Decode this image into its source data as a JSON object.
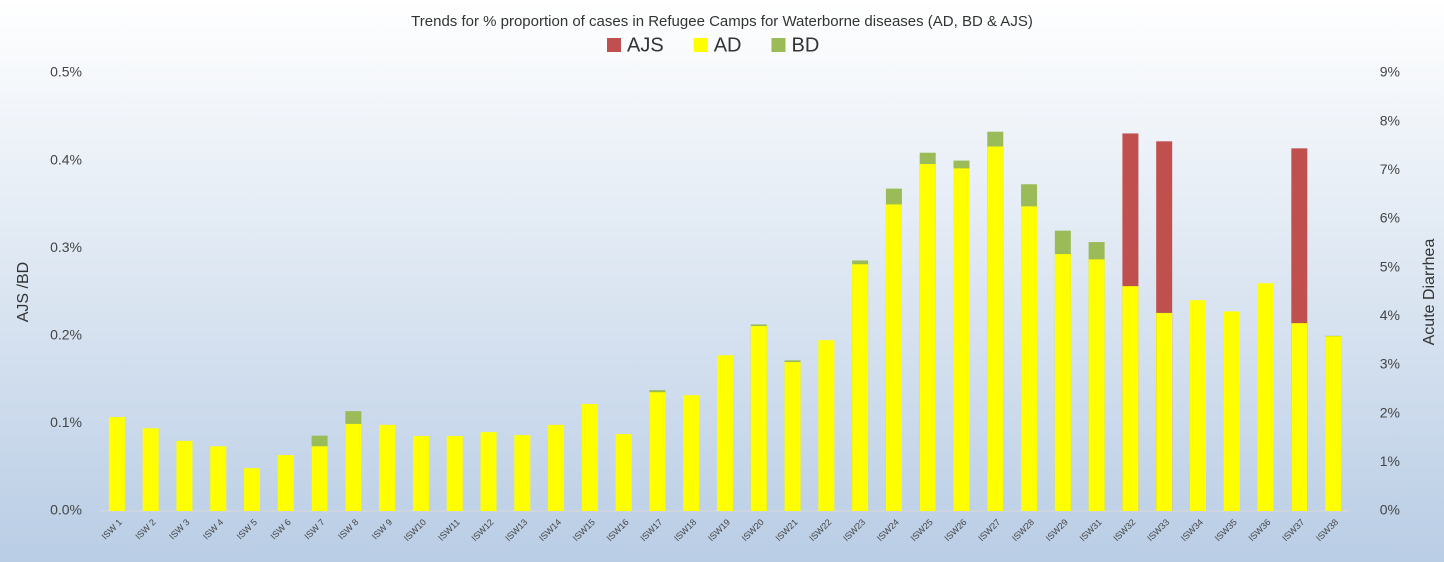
{
  "chart_data": {
    "type": "bar",
    "title": "Trends for % proportion of cases in Refugee Camps for Waterborne diseases (AD, BD & AJS)",
    "ylabel": "AJS /BD",
    "y2label": "Acute Diarrhea",
    "categories": [
      "ISW 1",
      "ISW 2",
      "ISW 3",
      "ISW 4",
      "ISW 5",
      "ISW 6",
      "ISW 7",
      "ISW 8",
      "ISW 9",
      "ISW10",
      "ISW11",
      "ISW12",
      "ISW13",
      "ISW14",
      "ISW15",
      "ISW16",
      "ISW17",
      "ISW18",
      "ISW19",
      "ISW20",
      "ISW21",
      "ISW22",
      "ISW23",
      "ISW24",
      "ISW25",
      "ISW26",
      "ISW27",
      "ISW28",
      "ISW29",
      "ISW31",
      "ISW32",
      "ISW33",
      "ISW34",
      "ISW35",
      "ISW36",
      "ISW37",
      "ISW38"
    ],
    "series": [
      {
        "name": "AJS",
        "color": "#c0504d",
        "values": [
          null,
          null,
          null,
          null,
          null,
          null,
          null,
          null,
          null,
          null,
          null,
          null,
          null,
          null,
          null,
          null,
          null,
          null,
          null,
          null,
          null,
          null,
          null,
          null,
          null,
          null,
          null,
          null,
          null,
          null,
          0.431,
          0.422,
          null,
          null,
          null,
          0.414,
          null
        ]
      },
      {
        "name": "AD",
        "color": "#ffff00",
        "axis": "y2",
        "values": [
          1.93,
          1.7,
          1.44,
          1.33,
          0.88,
          1.15,
          1.33,
          1.79,
          1.77,
          1.54,
          1.54,
          1.62,
          1.56,
          1.77,
          2.2,
          1.58,
          2.44,
          2.38,
          3.2,
          3.8,
          3.06,
          3.51,
          5.07,
          6.3,
          7.13,
          7.04,
          7.49,
          6.26,
          5.28,
          5.17,
          4.62,
          4.07,
          4.33,
          4.1,
          4.68,
          3.86,
          3.59
        ]
      },
      {
        "name": "BD",
        "color": "#9bbb59",
        "values": [
          null,
          null,
          null,
          null,
          null,
          null,
          0.086,
          0.114,
          null,
          null,
          null,
          null,
          null,
          null,
          null,
          null,
          0.138,
          null,
          null,
          0.213,
          0.172,
          null,
          0.286,
          0.368,
          0.409,
          0.4,
          0.433,
          0.373,
          0.32,
          0.307,
          null,
          null,
          null,
          null,
          null,
          null,
          0.2
        ]
      }
    ],
    "ylim": [
      0,
      0.5
    ],
    "yticks": [
      {
        "value": 0,
        "label": "0.0%"
      },
      {
        "value": 0.1,
        "label": "0.1%"
      },
      {
        "value": 0.2,
        "label": "0.2%"
      },
      {
        "value": 0.3,
        "label": "0.3%"
      },
      {
        "value": 0.4,
        "label": "0.4%"
      },
      {
        "value": 0.5,
        "label": "0.5%"
      }
    ],
    "y2lim": [
      0,
      9
    ],
    "y2ticks": [
      {
        "value": 0,
        "label": "0%"
      },
      {
        "value": 1,
        "label": "1%"
      },
      {
        "value": 2,
        "label": "2%"
      },
      {
        "value": 3,
        "label": "3%"
      },
      {
        "value": 4,
        "label": "4%"
      },
      {
        "value": 5,
        "label": "5%"
      },
      {
        "value": 6,
        "label": "6%"
      },
      {
        "value": 7,
        "label": "7%"
      },
      {
        "value": 8,
        "label": "8%"
      },
      {
        "value": 9,
        "label": "9%"
      }
    ],
    "legend": "top"
  }
}
